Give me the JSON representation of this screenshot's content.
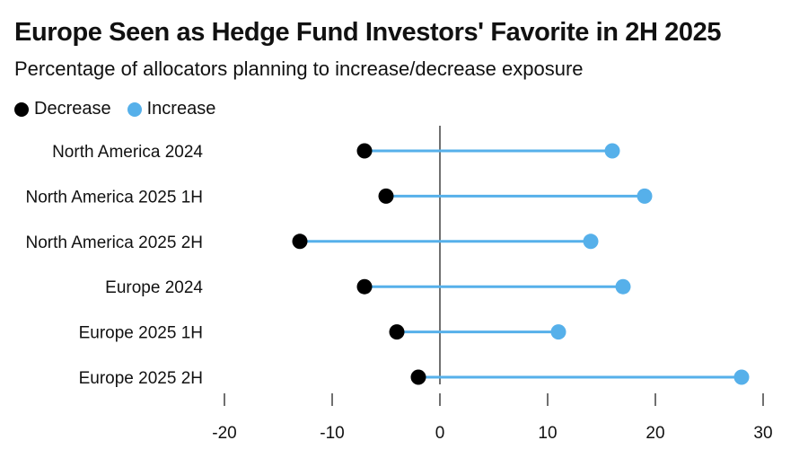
{
  "chart_data": {
    "type": "dumbbell",
    "title": "Europe Seen as Hedge Fund Investors' Favorite in 2H 2025",
    "subtitle": "Percentage of allocators planning to increase/decrease exposure",
    "categories": [
      "North America 2024",
      "North America 2025 1H",
      "North America 2025 2H",
      "Europe 2024",
      "Europe 2025 1H",
      "Europe 2025 2H"
    ],
    "series": [
      {
        "name": "Decrease",
        "color": "#000000",
        "values": [
          -7,
          -5,
          -13,
          -7,
          -4,
          -2
        ]
      },
      {
        "name": "Increase",
        "color": "#56b0ea",
        "values": [
          16,
          19,
          14,
          17,
          11,
          28
        ]
      }
    ],
    "xlim": [
      -20,
      30
    ],
    "xticks": [
      -20,
      -10,
      0,
      10,
      20,
      30
    ],
    "xtick_labels": [
      "-20",
      "-10",
      "0",
      "10",
      "20",
      "30"
    ],
    "legend_position": "top-left",
    "grid": false,
    "connector_color": "#56b0ea",
    "zero_line_color": "#111111"
  }
}
